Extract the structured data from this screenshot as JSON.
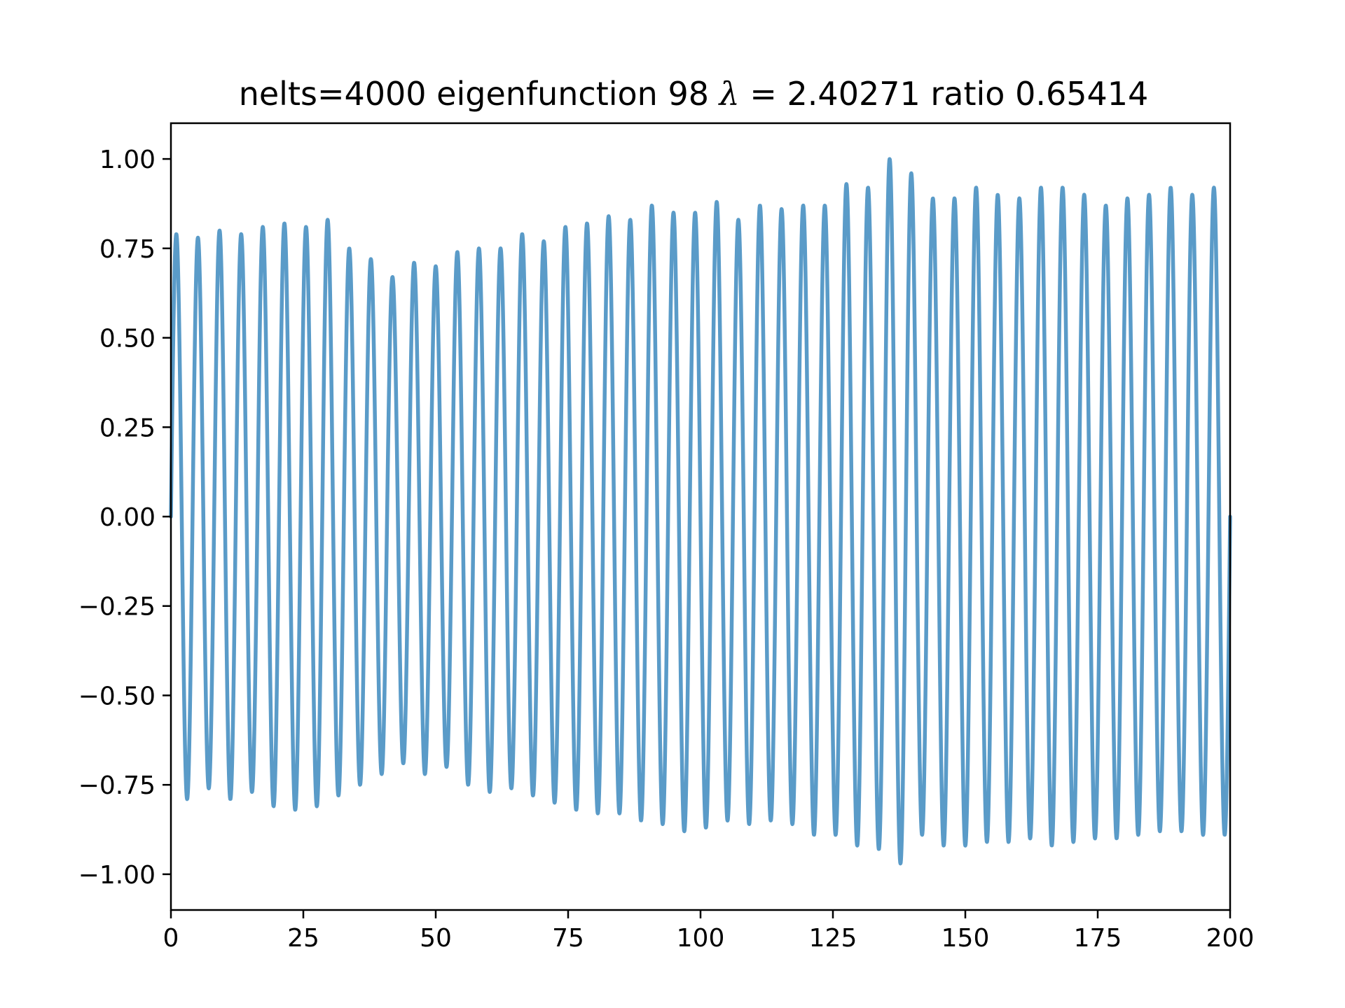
{
  "chart_data": {
    "type": "line",
    "title": {
      "prefix": "nelts=4000  eigenfunction 98  ",
      "symbol": "λ",
      "suffix": " = 2.40271 ratio 0.65414"
    },
    "xlabel": "",
    "ylabel": "",
    "xlim": [
      0,
      200
    ],
    "ylim": [
      -1.1,
      1.1
    ],
    "x_ticks": [
      0,
      25,
      50,
      75,
      100,
      125,
      150,
      175,
      200
    ],
    "x_tick_labels": [
      "0",
      "25",
      "50",
      "75",
      "100",
      "125",
      "150",
      "175",
      "200"
    ],
    "y_ticks": [
      1.0,
      0.75,
      0.5,
      0.25,
      0.0,
      -0.25,
      -0.5,
      -0.75,
      -1.0
    ],
    "y_tick_labels": [
      "1.00",
      "0.75",
      "0.50",
      "0.25",
      "0.00",
      "−0.25",
      "−0.50",
      "−0.75",
      "−1.00"
    ],
    "grid": false,
    "legend": "none",
    "line_color": "#5a9bc8",
    "series": [
      {
        "x_range": [
          0,
          200
        ],
        "cycles": 49,
        "start_value": 0,
        "end_value": 0,
        "extrema": [
          0.79,
          -0.79,
          0.78,
          -0.76,
          0.8,
          -0.79,
          0.79,
          -0.77,
          0.81,
          -0.81,
          0.82,
          -0.82,
          0.81,
          -0.81,
          0.83,
          -0.78,
          0.75,
          -0.75,
          0.72,
          -0.72,
          0.67,
          -0.69,
          0.71,
          -0.72,
          0.7,
          -0.7,
          0.74,
          -0.75,
          0.75,
          -0.77,
          0.75,
          -0.76,
          0.79,
          -0.78,
          0.77,
          -0.8,
          0.81,
          -0.82,
          0.82,
          -0.83,
          0.84,
          -0.83,
          0.83,
          -0.85,
          0.87,
          -0.86,
          0.85,
          -0.88,
          0.85,
          -0.87,
          0.88,
          -0.85,
          0.83,
          -0.86,
          0.87,
          -0.85,
          0.86,
          -0.86,
          0.87,
          -0.89,
          0.87,
          -0.89,
          0.93,
          -0.92,
          0.92,
          -0.93,
          1.0,
          -0.97,
          0.96,
          -0.89,
          0.89,
          -0.92,
          0.89,
          -0.92,
          0.92,
          -0.91,
          0.9,
          -0.91,
          0.89,
          -0.9,
          0.92,
          -0.92,
          0.92,
          -0.91,
          0.9,
          -0.9,
          0.87,
          -0.9,
          0.89,
          -0.89,
          0.9,
          -0.88,
          0.92,
          -0.88,
          0.9,
          -0.89,
          0.92,
          -0.89
        ]
      }
    ]
  }
}
